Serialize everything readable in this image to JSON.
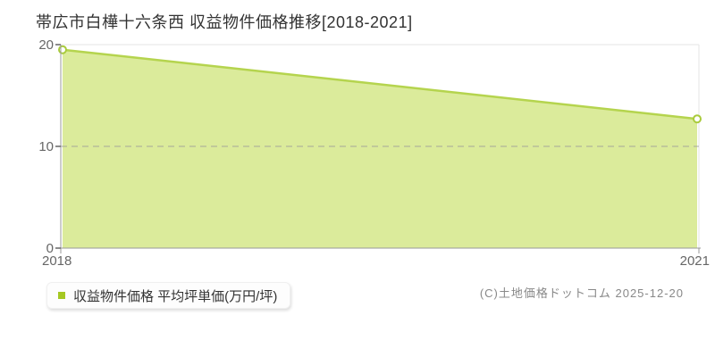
{
  "title": "帯広市白樺十六条西 収益物件価格推移[2018-2021]",
  "chart_data": {
    "type": "area",
    "x": [
      "2018",
      "2021"
    ],
    "series": [
      {
        "name": "収益物件価格 平均坪単価(万円/坪)",
        "values": [
          19.5,
          12.7
        ]
      }
    ],
    "title": "帯広市白樺十六条西 収益物件価格推移[2018-2021]",
    "xlabel": "",
    "ylabel": "平均坪単価(万円/坪)",
    "ylim": [
      0,
      20
    ],
    "yticks": [
      "20",
      "10",
      "0"
    ],
    "grid": "solid line at 20, dashed horizontal line at 10, baseline at 0",
    "legend_position": "bottom-left",
    "colors": {
      "area_fill": "#dbeb9b",
      "line": "#b5d44e",
      "marker_fill": "#ffffff",
      "marker_stroke": "#a9cb3c"
    }
  },
  "legend": {
    "label": "収益物件価格 平均坪単価(万円/坪)",
    "swatch_color": "#a5c823"
  },
  "copyright": "(C)土地価格ドットコム 2025-12-20"
}
